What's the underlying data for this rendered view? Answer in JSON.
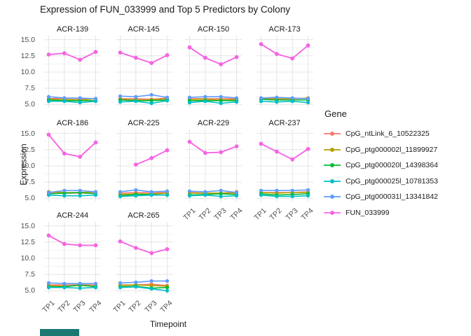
{
  "title": "Expression of FUN_033999 and Top 5 Predictors by Colony",
  "axes": {
    "x_title": "Timepoint",
    "y_title": "Expression",
    "x_tick_labels": [
      "TP1",
      "TP2",
      "TP3",
      "TP4"
    ],
    "y_tick_labels": [
      "15.0",
      "12.5",
      "10.0",
      "7.5",
      "5.0"
    ]
  },
  "legend": {
    "title": "Gene",
    "entries": [
      {
        "label": "CpG_ntLink_6_10522325",
        "color": "#F8766D"
      },
      {
        "label": "CpG_ptg000002l_11899927",
        "color": "#B79F00"
      },
      {
        "label": "CpG_ptg000020l_14398364",
        "color": "#00BA38"
      },
      {
        "label": "CpG_ptg000025l_10781353",
        "color": "#00BFC4"
      },
      {
        "label": "CpG_ptg000031l_13341842",
        "color": "#619CFF"
      },
      {
        "label": "FUN_033999",
        "color": "#F564E3"
      }
    ]
  },
  "chart_data": {
    "type": "line",
    "facet_by": "Colony",
    "x": [
      "TP1",
      "TP2",
      "TP3",
      "TP4"
    ],
    "ylim": [
      4.5,
      15.6
    ],
    "yticks": [
      5.0,
      7.5,
      10.0,
      12.5,
      15.0
    ],
    "yticks_minor": [
      6.25,
      8.75,
      11.25,
      13.75
    ],
    "grid": true,
    "legend_position": "right",
    "series_names": [
      "CpG_ntLink_6_10522325",
      "CpG_ptg000002l_11899927",
      "CpG_ptg000020l_14398364",
      "CpG_ptg000025l_10781353",
      "CpG_ptg000031l_13341842",
      "FUN_033999"
    ],
    "series_colors": [
      "#F8766D",
      "#B79F00",
      "#00BA38",
      "#00BFC4",
      "#619CFF",
      "#F564E3"
    ],
    "facets": [
      {
        "label": "ACR-139",
        "values": [
          [
            5.9,
            6.0,
            5.9,
            5.9
          ],
          [
            5.8,
            5.8,
            5.7,
            5.9
          ],
          [
            5.7,
            5.6,
            5.6,
            5.6
          ],
          [
            5.5,
            5.5,
            5.3,
            5.5
          ],
          [
            6.2,
            6.0,
            6.0,
            5.9
          ],
          [
            12.7,
            12.9,
            11.9,
            13.1
          ]
        ]
      },
      {
        "label": "ACR-145",
        "values": [
          [
            5.9,
            5.9,
            5.8,
            6.0
          ],
          [
            5.8,
            5.7,
            5.7,
            5.9
          ],
          [
            5.7,
            5.6,
            5.6,
            5.7
          ],
          [
            5.4,
            5.5,
            5.2,
            5.6
          ],
          [
            6.3,
            6.2,
            6.5,
            6.1
          ],
          [
            13.0,
            12.2,
            11.4,
            12.6
          ]
        ]
      },
      {
        "label": "ACR-150",
        "values": [
          [
            5.9,
            5.9,
            5.9,
            5.9
          ],
          [
            5.8,
            5.8,
            5.7,
            5.8
          ],
          [
            5.6,
            5.6,
            5.6,
            5.6
          ],
          [
            5.3,
            5.5,
            5.2,
            5.4
          ],
          [
            6.1,
            6.2,
            6.2,
            6.0
          ],
          [
            13.8,
            12.2,
            11.2,
            12.3
          ]
        ]
      },
      {
        "label": "ACR-173",
        "values": [
          [
            5.9,
            5.8,
            5.9,
            5.9
          ],
          [
            6.0,
            5.9,
            5.9,
            6.0
          ],
          [
            5.8,
            5.7,
            5.7,
            5.7
          ],
          [
            5.5,
            5.4,
            5.5,
            5.3
          ],
          [
            6.0,
            6.1,
            6.0,
            5.9
          ],
          [
            14.3,
            12.8,
            12.1,
            14.1
          ]
        ]
      },
      {
        "label": "ACR-186",
        "values": [
          [
            5.8,
            5.8,
            5.8,
            5.8
          ],
          [
            6.0,
            5.9,
            5.9,
            6.0
          ],
          [
            5.7,
            5.8,
            5.9,
            5.7
          ],
          [
            5.5,
            5.4,
            5.4,
            5.5
          ],
          [
            5.9,
            6.2,
            6.2,
            6.0
          ],
          [
            14.8,
            11.9,
            11.4,
            13.6
          ]
        ]
      },
      {
        "label": "ACR-225",
        "values": [
          [
            5.8,
            5.9,
            5.9,
            5.9
          ],
          [
            5.6,
            5.7,
            5.7,
            5.8
          ],
          [
            5.4,
            5.6,
            5.6,
            5.5
          ],
          [
            5.3,
            5.4,
            5.5,
            5.5
          ],
          [
            6.0,
            6.3,
            6.0,
            6.1
          ],
          [
            null,
            10.2,
            11.2,
            12.4
          ]
        ]
      },
      {
        "label": "ACR-229",
        "values": [
          [
            5.9,
            5.8,
            5.8,
            6.0
          ],
          [
            5.8,
            5.8,
            5.8,
            5.8
          ],
          [
            5.5,
            5.6,
            5.7,
            5.6
          ],
          [
            5.4,
            5.5,
            5.3,
            5.4
          ],
          [
            6.1,
            6.0,
            6.2,
            5.9
          ],
          [
            13.7,
            12.0,
            12.1,
            13.0
          ]
        ]
      },
      {
        "label": "ACR-237",
        "values": [
          [
            5.9,
            5.9,
            5.9,
            6.0
          ],
          [
            5.9,
            5.8,
            5.9,
            5.9
          ],
          [
            5.7,
            5.5,
            5.6,
            5.7
          ],
          [
            5.5,
            5.3,
            5.3,
            5.4
          ],
          [
            6.2,
            6.2,
            6.2,
            6.3
          ],
          [
            13.4,
            12.2,
            11.0,
            12.6
          ]
        ]
      },
      {
        "label": "ACR-244",
        "values": [
          [
            5.9,
            5.9,
            5.9,
            5.9
          ],
          [
            5.8,
            5.7,
            5.8,
            5.7
          ],
          [
            5.6,
            5.6,
            5.9,
            5.6
          ],
          [
            5.5,
            5.5,
            5.4,
            5.5
          ],
          [
            6.2,
            6.1,
            6.1,
            6.1
          ],
          [
            13.5,
            12.2,
            12.0,
            12.0
          ]
        ]
      },
      {
        "label": "ACR-265",
        "values": [
          [
            5.9,
            5.9,
            6.0,
            5.8
          ],
          [
            5.8,
            5.9,
            5.8,
            5.7
          ],
          [
            5.6,
            5.7,
            5.4,
            5.5
          ],
          [
            5.5,
            5.6,
            5.3,
            5.0
          ],
          [
            6.2,
            6.3,
            6.5,
            6.5
          ],
          [
            12.6,
            11.6,
            10.8,
            11.4
          ]
        ]
      }
    ]
  },
  "artifact": {
    "color": "#1d7872"
  }
}
